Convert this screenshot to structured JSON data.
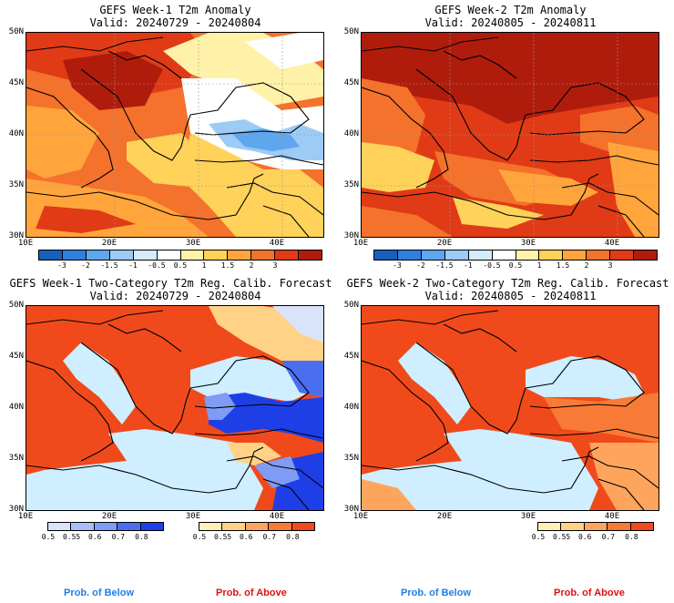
{
  "panels": [
    {
      "title": "GEFS Week-1 T2m Anomaly",
      "valid": "Valid: 20240729 - 20240804"
    },
    {
      "title": "GEFS Week-2 T2m Anomaly",
      "valid": "Valid: 20240805 - 20240811"
    },
    {
      "title": "GEFS Week-1 Two-Category T2m Reg. Calib. Forecast",
      "valid": "Valid: 20240729 - 20240804"
    },
    {
      "title": "GEFS Week-2 Two-Category T2m Reg. Calib. Forecast",
      "valid": "Valid: 20240805 - 20240811"
    }
  ],
  "lat_labels": [
    "50N",
    "45N",
    "40N",
    "35N",
    "30N"
  ],
  "lon_labels": [
    "10E",
    "20E",
    "30E",
    "40E"
  ],
  "anomaly_colorbar": {
    "labels": [
      "-3",
      "-2",
      "-1.5",
      "-1",
      "-0.5",
      "0.5",
      "1",
      "1.5",
      "2",
      "3"
    ],
    "colors": [
      "#1560bd",
      "#2f7fdc",
      "#5ea7ee",
      "#9ccbf5",
      "#d4ebfb",
      "#ffffff",
      "#fff2a8",
      "#ffd25a",
      "#ffa53c",
      "#f4722b",
      "#e03b16",
      "#b01c0c"
    ]
  },
  "prob_colorbar": {
    "below_labels": [
      "0.5",
      "0.55",
      "0.6",
      "0.7",
      "0.8"
    ],
    "below_colors": [
      "#d9e3fb",
      "#a9befa",
      "#7f9cf5",
      "#4a6ef0",
      "#1f3fe6"
    ],
    "above_labels": [
      "0.5",
      "0.55",
      "0.6",
      "0.7",
      "0.8"
    ],
    "above_colors": [
      "#ffefb8",
      "#ffd287",
      "#fda55c",
      "#f77b36",
      "#f04a1c"
    ]
  },
  "footer": {
    "below": "Prob. of Below",
    "above": "Prob. of Above"
  },
  "colors": {
    "sea_prob": "#cfeeff",
    "below_text": "#1f7fe0",
    "above_text": "#e01010"
  }
}
